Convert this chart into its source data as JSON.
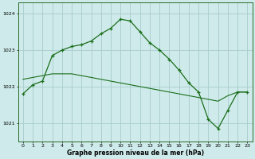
{
  "x": [
    0,
    1,
    2,
    3,
    4,
    5,
    6,
    7,
    8,
    9,
    10,
    11,
    12,
    13,
    14,
    15,
    16,
    17,
    18,
    19,
    20,
    21,
    22,
    23
  ],
  "line1": [
    1022.2,
    1022.25,
    1022.3,
    1022.35,
    1022.35,
    1022.35,
    1022.3,
    1022.25,
    1022.2,
    1022.15,
    1022.1,
    1022.05,
    1022.0,
    1021.95,
    1021.9,
    1021.85,
    1021.8,
    1021.75,
    1021.7,
    1021.65,
    1021.6,
    1021.75,
    1021.85,
    1021.85
  ],
  "line2": [
    1021.8,
    1022.05,
    1022.15,
    1022.85,
    1023.0,
    1023.1,
    1023.15,
    1023.25,
    1023.45,
    1023.6,
    1023.85,
    1023.8,
    1023.5,
    1023.2,
    1023.0,
    1022.75,
    1022.45,
    1022.1,
    1021.85,
    1021.1,
    1020.85,
    1021.35,
    1021.85,
    1021.85
  ],
  "background_color": "#ceeaea",
  "grid_color": "#a8cccc",
  "line_color": "#1a6e1a",
  "xlabel": "Graphe pression niveau de la mer (hPa)",
  "ylim": [
    1020.5,
    1024.3
  ],
  "xlim": [
    -0.5,
    23.5
  ],
  "yticks": [
    1021,
    1022,
    1023,
    1024
  ],
  "title_fontsize": 5.5,
  "tick_fontsize": 4.5
}
